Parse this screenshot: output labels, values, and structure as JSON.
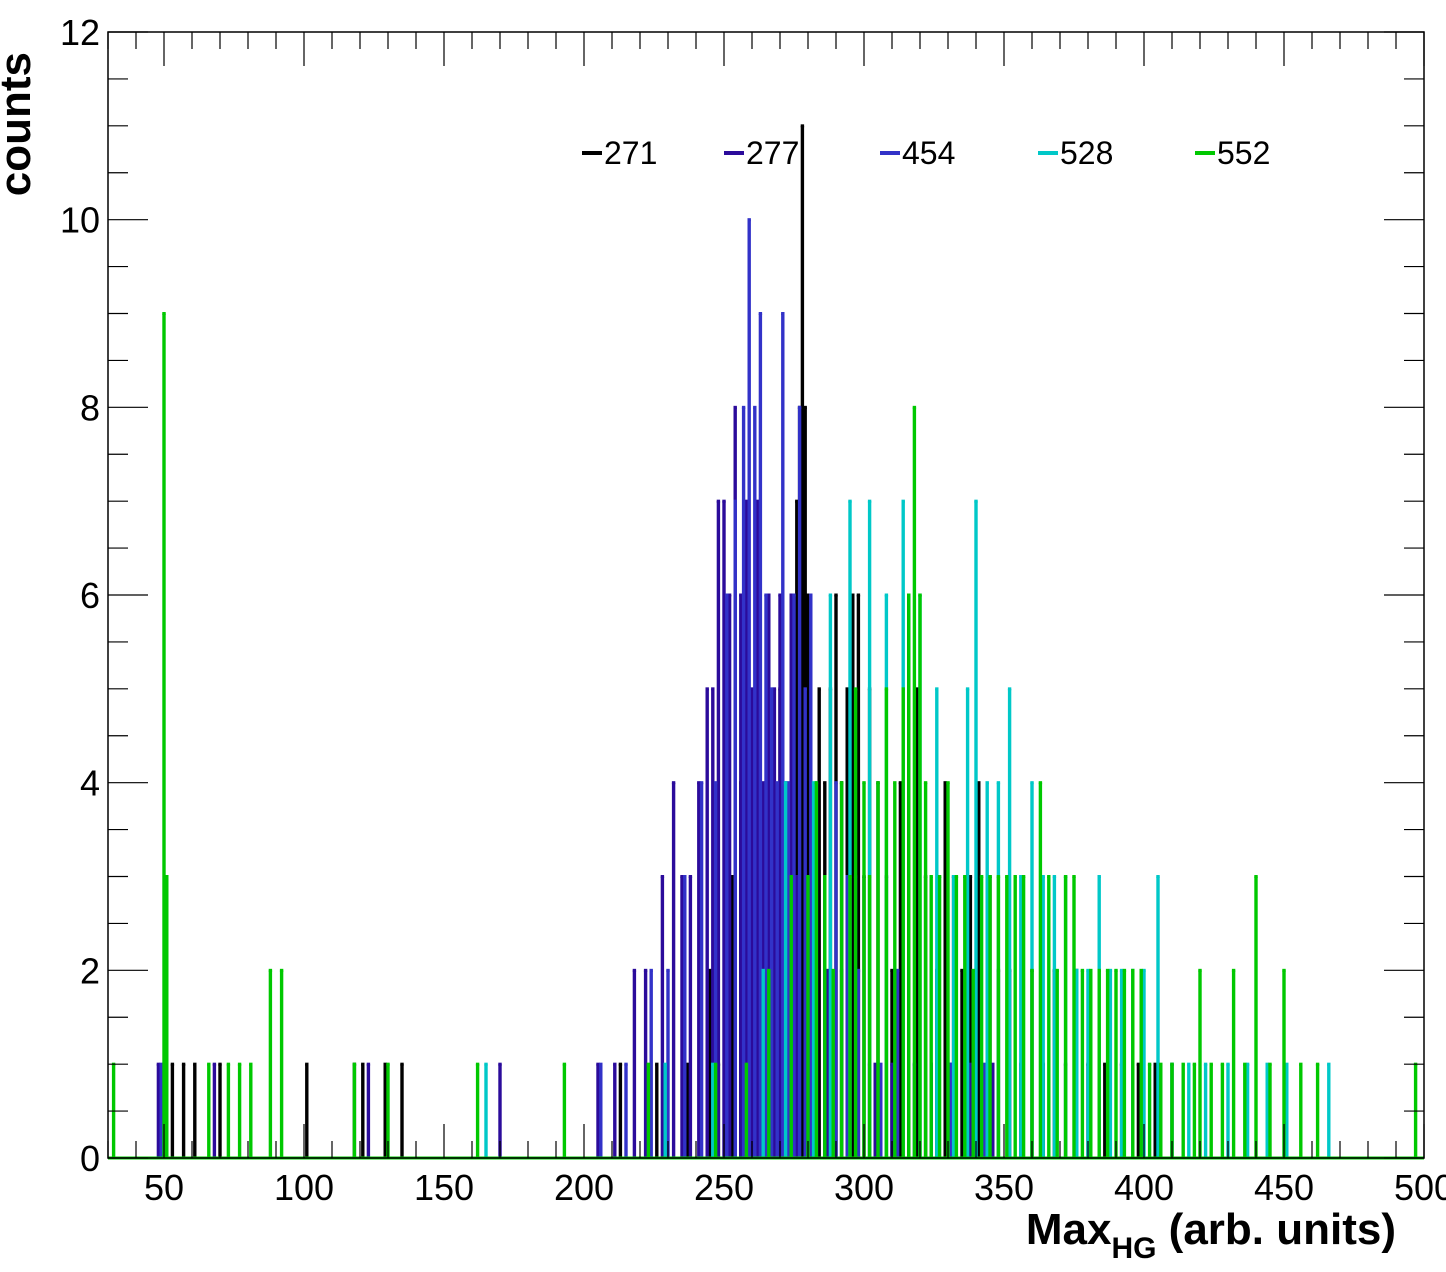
{
  "chart_data": {
    "type": "histogram",
    "xlabel": "Max",
    "xlabel_sub": "HG",
    "xlabel_suffix": " (arb. units)",
    "ylabel": "counts",
    "xlim": [
      30,
      500
    ],
    "ylim": [
      0,
      12
    ],
    "x_ticks": [
      50,
      100,
      150,
      200,
      250,
      300,
      350,
      400,
      450,
      500
    ],
    "y_ticks": [
      0,
      2,
      4,
      6,
      8,
      10,
      12
    ],
    "grid": false,
    "legend_position": "top-center",
    "series": [
      {
        "name": "271",
        "color": "#000000",
        "bins": [
          [
            50,
            1
          ],
          [
            53,
            1
          ],
          [
            57,
            1
          ],
          [
            61,
            1
          ],
          [
            70,
            1
          ],
          [
            101,
            1
          ],
          [
            118,
            1
          ],
          [
            121,
            1
          ],
          [
            129,
            1
          ],
          [
            135,
            1
          ],
          [
            213,
            1
          ],
          [
            226,
            1
          ],
          [
            237,
            1
          ],
          [
            245,
            2
          ],
          [
            248,
            1
          ],
          [
            253,
            3
          ],
          [
            256,
            4
          ],
          [
            259,
            2
          ],
          [
            261,
            3
          ],
          [
            263,
            1
          ],
          [
            265,
            4
          ],
          [
            268,
            3
          ],
          [
            270,
            5
          ],
          [
            272,
            3
          ],
          [
            274,
            4
          ],
          [
            276,
            7
          ],
          [
            277,
            8
          ],
          [
            278,
            11
          ],
          [
            279,
            8
          ],
          [
            280,
            6
          ],
          [
            282,
            3
          ],
          [
            284,
            5
          ],
          [
            286,
            4
          ],
          [
            288,
            5
          ],
          [
            290,
            6
          ],
          [
            292,
            4
          ],
          [
            294,
            5
          ],
          [
            296,
            6
          ],
          [
            298,
            6
          ],
          [
            300,
            3
          ],
          [
            302,
            5
          ],
          [
            305,
            4
          ],
          [
            308,
            3
          ],
          [
            310,
            2
          ],
          [
            313,
            4
          ],
          [
            316,
            6
          ],
          [
            319,
            5
          ],
          [
            322,
            3
          ],
          [
            326,
            2
          ],
          [
            329,
            4
          ],
          [
            332,
            3
          ],
          [
            335,
            2
          ],
          [
            338,
            3
          ],
          [
            341,
            4
          ],
          [
            345,
            3
          ],
          [
            348,
            2
          ],
          [
            352,
            2
          ],
          [
            356,
            1
          ],
          [
            360,
            2
          ],
          [
            364,
            1
          ],
          [
            368,
            2
          ],
          [
            372,
            1
          ],
          [
            376,
            2
          ],
          [
            380,
            1
          ],
          [
            386,
            1
          ],
          [
            392,
            1
          ],
          [
            398,
            1
          ],
          [
            404,
            1
          ],
          [
            410,
            1
          ]
        ]
      },
      {
        "name": "277",
        "color": "#2b0b9b",
        "bins": [
          [
            48,
            1
          ],
          [
            68,
            1
          ],
          [
            123,
            1
          ],
          [
            170,
            1
          ],
          [
            205,
            1
          ],
          [
            211,
            1
          ],
          [
            218,
            2
          ],
          [
            222,
            2
          ],
          [
            228,
            3
          ],
          [
            232,
            4
          ],
          [
            235,
            3
          ],
          [
            238,
            3
          ],
          [
            241,
            4
          ],
          [
            244,
            5
          ],
          [
            246,
            5
          ],
          [
            248,
            7
          ],
          [
            250,
            7
          ],
          [
            252,
            6
          ],
          [
            254,
            8
          ],
          [
            256,
            6
          ],
          [
            258,
            7
          ],
          [
            260,
            5
          ],
          [
            262,
            7
          ],
          [
            264,
            4
          ],
          [
            266,
            6
          ],
          [
            268,
            5
          ],
          [
            270,
            6
          ],
          [
            272,
            4
          ],
          [
            274,
            6
          ],
          [
            276,
            3
          ],
          [
            283,
            2
          ],
          [
            287,
            2
          ],
          [
            292,
            2
          ],
          [
            297,
            3
          ],
          [
            304,
            1
          ],
          [
            310,
            1
          ],
          [
            316,
            2
          ],
          [
            324,
            1
          ],
          [
            331,
            1
          ],
          [
            338,
            1
          ],
          [
            346,
            1
          ]
        ]
      },
      {
        "name": "454",
        "color": "#3232c8",
        "bins": [
          [
            49,
            1
          ],
          [
            206,
            1
          ],
          [
            215,
            1
          ],
          [
            224,
            2
          ],
          [
            230,
            2
          ],
          [
            236,
            3
          ],
          [
            242,
            4
          ],
          [
            247,
            4
          ],
          [
            251,
            6
          ],
          [
            254,
            7
          ],
          [
            257,
            8
          ],
          [
            259,
            10
          ],
          [
            261,
            8
          ],
          [
            263,
            9
          ],
          [
            265,
            6
          ],
          [
            267,
            5
          ],
          [
            269,
            4
          ],
          [
            271,
            9
          ],
          [
            273,
            4
          ],
          [
            275,
            6
          ],
          [
            277,
            8
          ],
          [
            279,
            5
          ],
          [
            281,
            6
          ],
          [
            283,
            4
          ],
          [
            286,
            3
          ],
          [
            290,
            4
          ],
          [
            294,
            3
          ],
          [
            298,
            2
          ],
          [
            302,
            1
          ],
          [
            306,
            1
          ],
          [
            312,
            2
          ],
          [
            318,
            1
          ],
          [
            324,
            1
          ],
          [
            331,
            1
          ],
          [
            343,
            1
          ]
        ]
      },
      {
        "name": "528",
        "color": "#00c8c8",
        "bins": [
          [
            165,
            1
          ],
          [
            229,
            1
          ],
          [
            246,
            1
          ],
          [
            264,
            2
          ],
          [
            272,
            4
          ],
          [
            282,
            4
          ],
          [
            288,
            6
          ],
          [
            295,
            7
          ],
          [
            302,
            7
          ],
          [
            308,
            6
          ],
          [
            314,
            7
          ],
          [
            320,
            6
          ],
          [
            326,
            5
          ],
          [
            332,
            3
          ],
          [
            337,
            5
          ],
          [
            340,
            7
          ],
          [
            344,
            4
          ],
          [
            348,
            4
          ],
          [
            352,
            5
          ],
          [
            356,
            3
          ],
          [
            360,
            4
          ],
          [
            364,
            3
          ],
          [
            368,
            3
          ],
          [
            372,
            3
          ],
          [
            376,
            2
          ],
          [
            380,
            2
          ],
          [
            384,
            3
          ],
          [
            388,
            2
          ],
          [
            392,
            2
          ],
          [
            396,
            2
          ],
          [
            400,
            2
          ],
          [
            405,
            3
          ],
          [
            410,
            1
          ],
          [
            416,
            1
          ],
          [
            422,
            1
          ],
          [
            430,
            1
          ],
          [
            437,
            1
          ],
          [
            444,
            1
          ],
          [
            451,
            1
          ],
          [
            466,
            1
          ]
        ]
      },
      {
        "name": "552",
        "color": "#00c800",
        "bins": [
          [
            32,
            1
          ],
          [
            50,
            9
          ],
          [
            51,
            3
          ],
          [
            66,
            1
          ],
          [
            73,
            1
          ],
          [
            77,
            1
          ],
          [
            81,
            1
          ],
          [
            88,
            2
          ],
          [
            92,
            2
          ],
          [
            118,
            1
          ],
          [
            130,
            1
          ],
          [
            162,
            1
          ],
          [
            193,
            1
          ],
          [
            223,
            1
          ],
          [
            247,
            1
          ],
          [
            258,
            1
          ],
          [
            266,
            2
          ],
          [
            274,
            3
          ],
          [
            280,
            3
          ],
          [
            283,
            4
          ],
          [
            286,
            3
          ],
          [
            289,
            2
          ],
          [
            292,
            4
          ],
          [
            295,
            3
          ],
          [
            297,
            5
          ],
          [
            300,
            4
          ],
          [
            302,
            3
          ],
          [
            305,
            4
          ],
          [
            308,
            5
          ],
          [
            311,
            4
          ],
          [
            314,
            5
          ],
          [
            316,
            6
          ],
          [
            318,
            8
          ],
          [
            320,
            6
          ],
          [
            322,
            4
          ],
          [
            324,
            3
          ],
          [
            327,
            3
          ],
          [
            330,
            4
          ],
          [
            333,
            3
          ],
          [
            336,
            3
          ],
          [
            339,
            2
          ],
          [
            342,
            3
          ],
          [
            345,
            3
          ],
          [
            348,
            3
          ],
          [
            351,
            3
          ],
          [
            354,
            3
          ],
          [
            357,
            3
          ],
          [
            360,
            2
          ],
          [
            363,
            4
          ],
          [
            366,
            3
          ],
          [
            369,
            2
          ],
          [
            372,
            3
          ],
          [
            375,
            3
          ],
          [
            378,
            2
          ],
          [
            381,
            2
          ],
          [
            384,
            2
          ],
          [
            387,
            2
          ],
          [
            390,
            2
          ],
          [
            393,
            2
          ],
          [
            396,
            2
          ],
          [
            399,
            2
          ],
          [
            402,
            1
          ],
          [
            406,
            1
          ],
          [
            410,
            1
          ],
          [
            414,
            1
          ],
          [
            418,
            1
          ],
          [
            420,
            2
          ],
          [
            424,
            1
          ],
          [
            428,
            1
          ],
          [
            432,
            2
          ],
          [
            436,
            1
          ],
          [
            440,
            3
          ],
          [
            445,
            1
          ],
          [
            450,
            2
          ],
          [
            456,
            1
          ],
          [
            462,
            1
          ],
          [
            497,
            1
          ]
        ]
      }
    ]
  }
}
